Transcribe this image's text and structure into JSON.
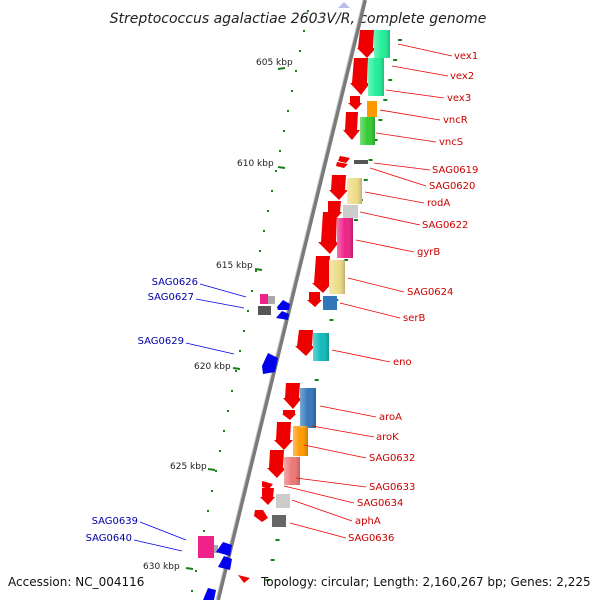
{
  "title": "Streptococcus agalactiae 2603V/R, complete genome",
  "accession": "Accession: NC_004116",
  "topology": "Topology: circular; Length: 2,160,267 bp; Genes: 2,225",
  "colors": {
    "backbone": "#7a7a7a",
    "tick": "#1a7f1a",
    "forward_gene": "#ee0000",
    "reverse_gene": "#0000ee",
    "forward_label": "#cc0000",
    "reverse_label": "#0000aa"
  },
  "kbp_ticks": [
    "605 kbp",
    "610 kbp",
    "615 kbp",
    "620 kbp",
    "625 kbp",
    "630 kbp"
  ],
  "forward_genes": [
    "vex1",
    "vex2",
    "vex3",
    "vncR",
    "vncS",
    "SAG0619",
    "SAG0620",
    "rodA",
    "SAG0622",
    "gyrB",
    "SAG0624",
    "serB",
    "eno",
    "aroA",
    "aroK",
    "SAG0632",
    "SAG0633",
    "SAG0634",
    "aphA",
    "SAG0636"
  ],
  "reverse_genes": [
    "SAG0626",
    "SAG0627",
    "SAG0629",
    "SAG0639",
    "SAG0640"
  ],
  "cog_colors": {
    "spring_green": "#22ee99",
    "green": "#33cc33",
    "orange": "#ff9900",
    "gray": "#8a8a8a",
    "light_gray": "#cccccc",
    "khaki": "#eedd88",
    "pink": "#ee2288",
    "steel_blue": "#3377bb",
    "cyan": "#11bbbb",
    "salmon": "#ee7777"
  }
}
